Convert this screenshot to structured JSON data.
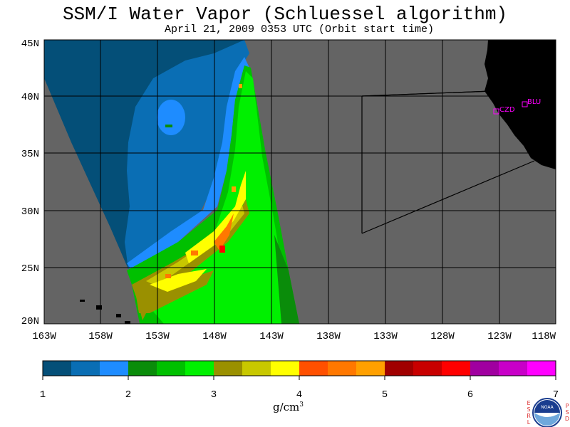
{
  "title": "SSM/I Water Vapor (Schluessel algorithm)",
  "subtitle": "April 21, 2009  0353 UTC  (Orbit start time)",
  "map": {
    "lat_labels": [
      "45N",
      "40N",
      "35N",
      "30N",
      "25N",
      "20N"
    ],
    "lon_labels": [
      "163W",
      "158W",
      "153W",
      "148W",
      "143W",
      "138W",
      "133W",
      "128W",
      "123W",
      "118W"
    ],
    "stations": [
      {
        "label": "CZD"
      },
      {
        "label": "BLU"
      }
    ],
    "colors": {
      "background_gray": "#646464",
      "land": "#000000",
      "station": "#ff00ff"
    }
  },
  "colorbar": {
    "ticks": [
      "1",
      "2",
      "3",
      "4",
      "5",
      "6",
      "7"
    ],
    "unit": "g/cm",
    "unit_sup": "3",
    "colors": [
      "#044f78",
      "#0a6eb4",
      "#1e8cff",
      "#0a8c0a",
      "#00c000",
      "#00f000",
      "#9a9000",
      "#c8c800",
      "#ffff00",
      "#ff5000",
      "#ff7800",
      "#ffa000",
      "#a00000",
      "#c80000",
      "#ff0000",
      "#a000a0",
      "#c800c8",
      "#ff00ff"
    ]
  },
  "logo": {
    "left_text": "ESRL",
    "right_text": "PSD",
    "center_text": "NOAA"
  }
}
